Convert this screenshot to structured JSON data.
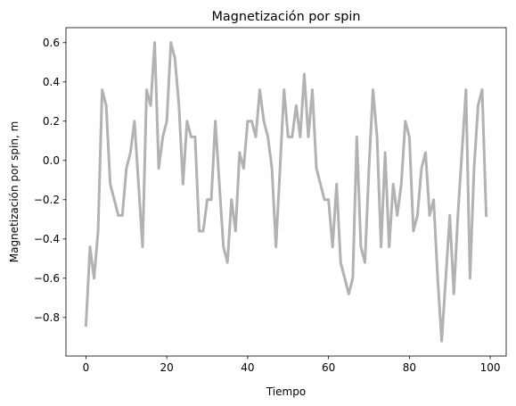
{
  "chart_data": {
    "type": "line",
    "title": "Magnetización por spin",
    "xlabel": "Tiempo",
    "ylabel": "Magnetización por spin, m",
    "xlim": [
      -4.95,
      103.95
    ],
    "ylim": [
      -0.9963,
      0.6763
    ],
    "xticks": [
      0,
      20,
      40,
      60,
      80,
      100
    ],
    "yticks": [
      -0.8,
      -0.6,
      -0.4,
      -0.2,
      0.0,
      0.2,
      0.4,
      0.6
    ],
    "xtick_labels": [
      "0",
      "20",
      "40",
      "60",
      "80",
      "100"
    ],
    "ytick_labels": [
      "−0.8",
      "−0.6",
      "−0.4",
      "−0.2",
      "0.0",
      "0.2",
      "0.4",
      "0.6"
    ],
    "grid": false,
    "series": [
      {
        "color": "#b2b2b2",
        "x": [
          0,
          1,
          2,
          3,
          4,
          5,
          6,
          7,
          8,
          9,
          10,
          11,
          12,
          13,
          14,
          15,
          16,
          17,
          18,
          19,
          20,
          21,
          22,
          23,
          24,
          25,
          26,
          27,
          28,
          29,
          30,
          31,
          32,
          33,
          34,
          35,
          36,
          37,
          38,
          39,
          40,
          41,
          42,
          43,
          44,
          45,
          46,
          47,
          48,
          49,
          50,
          51,
          52,
          53,
          54,
          55,
          56,
          57,
          58,
          59,
          60,
          61,
          62,
          63,
          64,
          65,
          66,
          67,
          68,
          69,
          70,
          71,
          72,
          73,
          74,
          75,
          76,
          77,
          78,
          79,
          80,
          81,
          82,
          83,
          84,
          85,
          86,
          87,
          88,
          89,
          90,
          91,
          92,
          93,
          94,
          95,
          96,
          97,
          98,
          99
        ],
        "values": [
          -0.84,
          -0.44,
          -0.6,
          -0.36,
          0.36,
          0.28,
          -0.12,
          -0.2,
          -0.28,
          -0.28,
          -0.04,
          0.04,
          0.2,
          -0.12,
          -0.44,
          0.36,
          0.28,
          0.6,
          -0.04,
          0.12,
          0.2,
          0.6,
          0.52,
          0.28,
          -0.12,
          0.2,
          0.12,
          0.12,
          -0.36,
          -0.36,
          -0.2,
          -0.2,
          0.2,
          -0.12,
          -0.44,
          -0.52,
          -0.2,
          -0.36,
          0.04,
          -0.04,
          0.2,
          0.2,
          0.12,
          0.36,
          0.2,
          0.12,
          -0.04,
          -0.44,
          -0.04,
          0.36,
          0.12,
          0.12,
          0.28,
          0.12,
          0.44,
          0.12,
          0.36,
          -0.04,
          -0.12,
          -0.2,
          -0.2,
          -0.44,
          -0.12,
          -0.52,
          -0.6,
          -0.68,
          -0.6,
          0.12,
          -0.44,
          -0.52,
          -0.04,
          0.36,
          0.12,
          -0.44,
          0.04,
          -0.44,
          -0.12,
          -0.28,
          -0.12,
          0.2,
          0.12,
          -0.36,
          -0.28,
          -0.04,
          0.04,
          -0.28,
          -0.2,
          -0.6,
          -0.92,
          -0.6,
          -0.28,
          -0.68,
          -0.28,
          0.04,
          0.36,
          -0.6,
          -0.04,
          0.28,
          0.36,
          -0.28
        ]
      }
    ]
  }
}
